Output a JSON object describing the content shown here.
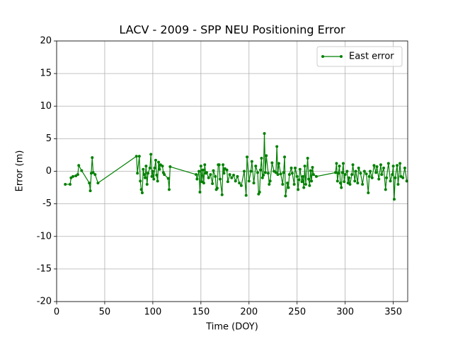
{
  "chart_data": {
    "type": "line",
    "title": "LACV - 2009 - SPP NEU Positioning Error",
    "x_label": "Time (DOY)",
    "y_label": "Error (m)",
    "x": [
      9,
      14,
      15,
      17,
      20,
      22,
      23,
      26,
      34,
      35,
      36,
      37,
      38,
      40,
      43,
      83,
      84,
      86,
      87,
      88,
      89,
      90,
      91,
      92,
      93,
      94,
      95,
      97,
      98,
      99,
      100,
      101,
      102,
      103,
      104,
      105,
      106,
      107,
      108,
      110,
      111,
      112,
      116,
      117,
      118,
      145,
      146,
      148,
      149,
      150,
      151,
      152,
      153,
      154,
      155,
      156,
      158,
      160,
      162,
      163,
      165,
      166,
      167,
      168,
      169,
      170,
      172,
      173,
      174,
      175,
      177,
      178,
      180,
      182,
      184,
      186,
      188,
      190,
      192,
      195,
      197,
      198,
      200,
      202,
      203,
      205,
      207,
      209,
      210,
      211,
      212,
      213,
      214,
      215,
      216,
      217,
      218,
      220,
      221,
      222,
      224,
      226,
      228,
      229,
      230,
      231,
      233,
      235,
      236,
      237,
      238,
      240,
      241,
      242,
      244,
      245,
      247,
      248,
      250,
      251,
      252,
      253,
      255,
      256,
      257,
      258,
      259,
      261,
      262,
      263,
      264,
      265,
      266,
      267,
      270,
      290,
      291,
      292,
      293,
      294,
      295,
      296,
      297,
      298,
      299,
      300,
      302,
      303,
      304,
      305,
      307,
      308,
      310,
      311,
      313,
      314,
      316,
      318,
      320,
      322,
      324,
      325,
      326,
      328,
      330,
      332,
      333,
      335,
      337,
      338,
      340,
      342,
      343,
      345,
      347,
      349,
      350,
      351,
      352,
      354,
      355,
      357,
      358,
      360,
      362,
      364
    ],
    "series": [
      {
        "name": "East error",
        "color": "#008000",
        "values": [
          -2,
          -2,
          -1,
          -0.8,
          -0.7,
          -0.5,
          0.9,
          0.1,
          -1.8,
          -3,
          -0.3,
          2.1,
          -0.2,
          -0.5,
          -1.8,
          2.3,
          -0.3,
          2.3,
          -1.5,
          -2.8,
          -3.3,
          0.3,
          -0.5,
          -1,
          0.8,
          -2,
          -0.3,
          0.5,
          2.6,
          -0.8,
          0,
          -1.2,
          0.5,
          1.7,
          -0.6,
          -1.5,
          1.4,
          0.3,
          1,
          0.8,
          -0.2,
          -0.5,
          -1.1,
          -2.8,
          0.7,
          -0.5,
          -1.2,
          0,
          -3.2,
          0.8,
          -1.6,
          0.2,
          -1.8,
          1,
          -0.3,
          -0.2,
          -1,
          -0.5,
          -1.9,
          0.1,
          -0.8,
          -2.8,
          -2.6,
          1,
          1,
          -1.2,
          -3.6,
          1,
          -0.3,
          0.4,
          0.2,
          -1.6,
          -0.5,
          -1,
          -0.6,
          -1.5,
          -0.8,
          -1.8,
          -2.2,
          0,
          -3.7,
          2.2,
          -1.5,
          0,
          1.5,
          -1.8,
          0.8,
          -0.2,
          -3.5,
          -3.2,
          0.2,
          2,
          -1,
          -0.6,
          5.8,
          -0.2,
          2.4,
          -0.3,
          -2,
          -1.5,
          1.3,
          0,
          -0.2,
          3.8,
          -0.5,
          1.2,
          -0.4,
          -2,
          -0.2,
          2.2,
          -3.8,
          -1.8,
          -2.5,
          -0.5,
          0.5,
          -0.3,
          -2,
          0.5,
          -0.8,
          -2.8,
          -1.3,
          0.3,
          -1.6,
          -0.8,
          -2.5,
          0.8,
          -2,
          2,
          -1.2,
          -2.2,
          0.1,
          -1.5,
          0.6,
          -0.5,
          -0.8,
          -0.2,
          1.2,
          -1.5,
          -0.3,
          0.8,
          -1.8,
          -2.5,
          -0.2,
          1.2,
          -1.6,
          -0.5,
          0,
          -1.8,
          -1,
          -2,
          -0.5,
          1,
          -1.5,
          0,
          -1.8,
          0.5,
          -0.3,
          -2,
          0,
          -0.4,
          -3.3,
          -0.8,
          0,
          -1,
          0.9,
          -0.2,
          0.7,
          -1.2,
          1,
          -0.5,
          0.5,
          -2.8,
          -1,
          1.2,
          -1.5,
          -0.5,
          0.8,
          -4.3,
          -1,
          0.9,
          -2,
          1.2,
          -0.8,
          -1,
          0.5,
          -1.5
        ]
      }
    ],
    "xlim": [
      0,
      365
    ],
    "ylim": [
      -20,
      20
    ],
    "xticks": [
      0,
      50,
      100,
      150,
      200,
      250,
      300,
      350
    ],
    "yticks": [
      -20,
      -15,
      -10,
      -5,
      0,
      5,
      10,
      15,
      20
    ],
    "grid": true,
    "legend": "upper right"
  }
}
